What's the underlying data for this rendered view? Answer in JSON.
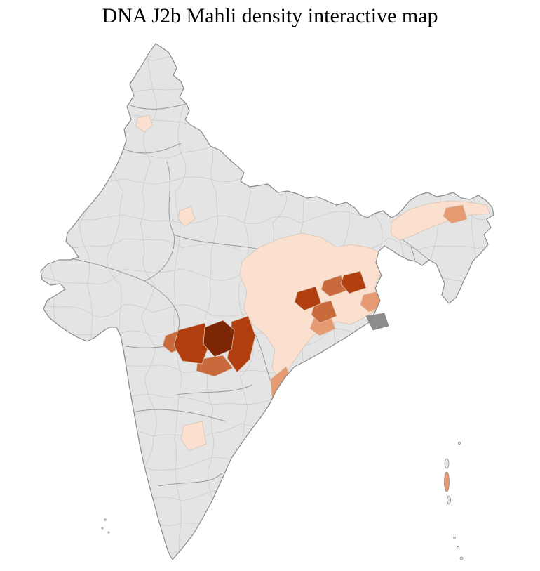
{
  "map": {
    "title": "DNA J2b Mahli density interactive map",
    "region": "India",
    "type": "choropleth-district-map",
    "background": "#ffffff",
    "base_fill": "#e4e4e4",
    "outline_color": "#8a8a8a",
    "district_line_color": "#c8c8c8",
    "state_line_color": "#9a9a9a",
    "delta_patch_color": "#8d8d8d",
    "levels_order": [
      "none",
      "very_low",
      "low",
      "medium",
      "high",
      "highest"
    ],
    "palette": {
      "none": "#e4e4e4",
      "very_low": "#fbe0d0",
      "low": "#e59a72",
      "medium": "#c96a3c",
      "high": "#b13f10",
      "highest": "#7c2605"
    }
  }
}
